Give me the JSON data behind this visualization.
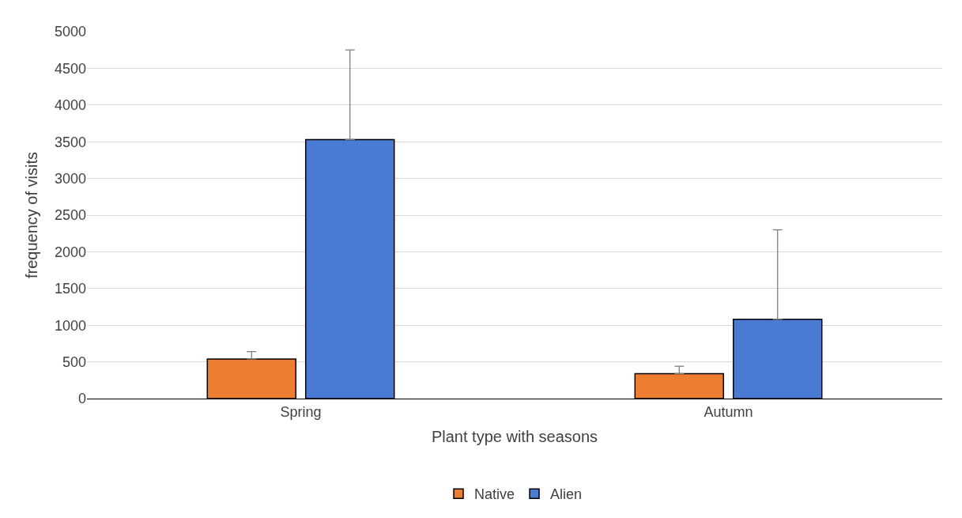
{
  "chart_data": {
    "type": "bar",
    "xlabel": "Plant type with seasons",
    "ylabel": "frequency of visits",
    "categories": [
      "Spring",
      "Autumn"
    ],
    "series": [
      {
        "name": "Native",
        "color": "#ed7d31",
        "values": [
          540,
          340
        ],
        "errors": [
          [
            540,
            640
          ],
          [
            340,
            440
          ]
        ]
      },
      {
        "name": "Alien",
        "color": "#4a7bd4",
        "values": [
          3530,
          1080
        ],
        "errors": [
          [
            3530,
            4750
          ],
          [
            1080,
            2300
          ]
        ]
      }
    ],
    "ylim": [
      0,
      5000
    ],
    "yticks": [
      0,
      500,
      1000,
      1500,
      2000,
      2500,
      3000,
      3500,
      4000,
      4500,
      5000
    ],
    "grid": "y",
    "legend": "bottom"
  }
}
